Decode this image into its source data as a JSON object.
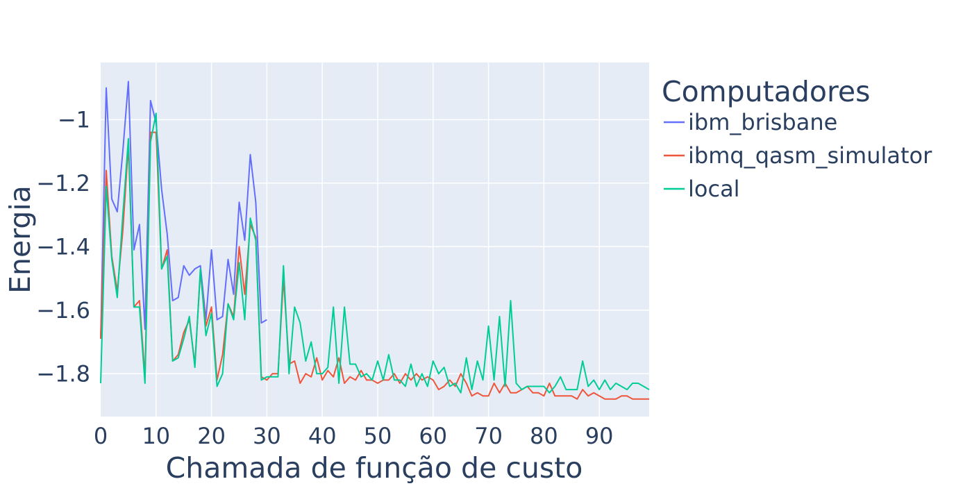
{
  "chart_data": {
    "type": "line",
    "title": "",
    "xlabel": "Chamada de função de custo",
    "ylabel": "Energia",
    "xlim": [
      0,
      99
    ],
    "ylim": [
      -1.935,
      -0.82
    ],
    "xticks": [
      0,
      10,
      20,
      30,
      40,
      50,
      60,
      70,
      80,
      90
    ],
    "yticks": [
      -1.8,
      -1.6,
      -1.4,
      -1.2,
      -1
    ],
    "ytick_labels": [
      "−1.8",
      "−1.6",
      "−1.4",
      "−1.2",
      "−1"
    ],
    "grid": true,
    "plot_background": "#e5ecf6",
    "legend": {
      "title": "Computadores",
      "placement": "right"
    },
    "series": [
      {
        "name": "ibm_brisbane",
        "color": "#636efa",
        "x": [
          0,
          1,
          2,
          3,
          4,
          5,
          6,
          7,
          8,
          9,
          10,
          11,
          12,
          13,
          14,
          15,
          16,
          17,
          18,
          19,
          20,
          21,
          22,
          23,
          24,
          25,
          26,
          27,
          28,
          29,
          30
        ],
        "y": [
          -1.69,
          -0.9,
          -1.25,
          -1.29,
          -1.1,
          -0.88,
          -1.41,
          -1.33,
          -1.66,
          -0.94,
          -1.01,
          -1.22,
          -1.36,
          -1.57,
          -1.56,
          -1.46,
          -1.49,
          -1.47,
          -1.46,
          -1.63,
          -1.41,
          -1.63,
          -1.62,
          -1.44,
          -1.55,
          -1.26,
          -1.38,
          -1.11,
          -1.26,
          -1.64,
          -1.63
        ]
      },
      {
        "name": "ibmq_qasm_simulator",
        "color": "#ef553b",
        "x": [
          0,
          1,
          2,
          3,
          4,
          5,
          6,
          7,
          8,
          9,
          10,
          11,
          12,
          13,
          14,
          15,
          16,
          17,
          18,
          19,
          20,
          21,
          22,
          23,
          24,
          25,
          26,
          27,
          28,
          29,
          30,
          31,
          32,
          33,
          34,
          35,
          36,
          37,
          38,
          39,
          40,
          41,
          42,
          43,
          44,
          45,
          46,
          47,
          48,
          49,
          50,
          51,
          52,
          53,
          54,
          55,
          56,
          57,
          58,
          59,
          60,
          61,
          62,
          63,
          64,
          65,
          66,
          67,
          68,
          69,
          70,
          71,
          72,
          73,
          74,
          75,
          76,
          77,
          78,
          79,
          80,
          81,
          82,
          83,
          84,
          85,
          86,
          87,
          88,
          89,
          90,
          91,
          92,
          93,
          94,
          95,
          96,
          97,
          98,
          99
        ],
        "y": [
          -1.69,
          -1.16,
          -1.43,
          -1.54,
          -1.35,
          -1.08,
          -1.59,
          -1.57,
          -1.81,
          -1.04,
          -1.04,
          -1.47,
          -1.41,
          -1.76,
          -1.74,
          -1.67,
          -1.63,
          -1.77,
          -1.48,
          -1.65,
          -1.59,
          -1.82,
          -1.74,
          -1.58,
          -1.62,
          -1.4,
          -1.55,
          -1.33,
          -1.37,
          -1.81,
          -1.82,
          -1.8,
          -1.8,
          -1.5,
          -1.77,
          -1.76,
          -1.83,
          -1.8,
          -1.81,
          -1.75,
          -1.82,
          -1.79,
          -1.81,
          -1.75,
          -1.83,
          -1.81,
          -1.82,
          -1.79,
          -1.82,
          -1.82,
          -1.83,
          -1.82,
          -1.82,
          -1.8,
          -1.83,
          -1.8,
          -1.82,
          -1.8,
          -1.82,
          -1.81,
          -1.82,
          -1.85,
          -1.84,
          -1.82,
          -1.84,
          -1.8,
          -1.83,
          -1.87,
          -1.86,
          -1.87,
          -1.87,
          -1.83,
          -1.86,
          -1.83,
          -1.86,
          -1.86,
          -1.85,
          -1.84,
          -1.86,
          -1.86,
          -1.87,
          -1.83,
          -1.87,
          -1.87,
          -1.87,
          -1.87,
          -1.88,
          -1.85,
          -1.87,
          -1.86,
          -1.87,
          -1.88,
          -1.88,
          -1.88,
          -1.87,
          -1.87,
          -1.88,
          -1.88,
          -1.88,
          -1.88
        ]
      },
      {
        "name": "local",
        "color": "#00cc96",
        "x": [
          0,
          1,
          2,
          3,
          4,
          5,
          6,
          7,
          8,
          9,
          10,
          11,
          12,
          13,
          14,
          15,
          16,
          17,
          18,
          19,
          20,
          21,
          22,
          23,
          24,
          25,
          26,
          27,
          28,
          29,
          30,
          31,
          32,
          33,
          34,
          35,
          36,
          37,
          38,
          39,
          40,
          41,
          42,
          43,
          44,
          45,
          46,
          47,
          48,
          49,
          50,
          51,
          52,
          53,
          54,
          55,
          56,
          57,
          58,
          59,
          60,
          61,
          62,
          63,
          64,
          65,
          66,
          67,
          68,
          69,
          70,
          71,
          72,
          73,
          74,
          75,
          76,
          77,
          78,
          79,
          80,
          81,
          82,
          83,
          84,
          85,
          86,
          87,
          88,
          89,
          90,
          91,
          92,
          93,
          94,
          95,
          96,
          97,
          98,
          99
        ],
        "y": [
          -1.83,
          -1.21,
          -1.44,
          -1.56,
          -1.3,
          -1.06,
          -1.59,
          -1.59,
          -1.83,
          -1.07,
          -0.98,
          -1.47,
          -1.43,
          -1.76,
          -1.75,
          -1.69,
          -1.62,
          -1.78,
          -1.47,
          -1.68,
          -1.61,
          -1.84,
          -1.8,
          -1.58,
          -1.63,
          -1.45,
          -1.63,
          -1.31,
          -1.38,
          -1.82,
          -1.81,
          -1.81,
          -1.81,
          -1.46,
          -1.8,
          -1.59,
          -1.64,
          -1.76,
          -1.7,
          -1.8,
          -1.8,
          -1.78,
          -1.59,
          -1.83,
          -1.59,
          -1.77,
          -1.77,
          -1.81,
          -1.8,
          -1.82,
          -1.76,
          -1.82,
          -1.74,
          -1.82,
          -1.82,
          -1.84,
          -1.77,
          -1.84,
          -1.8,
          -1.84,
          -1.76,
          -1.8,
          -1.78,
          -1.84,
          -1.83,
          -1.86,
          -1.75,
          -1.85,
          -1.76,
          -1.82,
          -1.65,
          -1.82,
          -1.62,
          -1.84,
          -1.57,
          -1.83,
          -1.85,
          -1.84,
          -1.84,
          -1.84,
          -1.84,
          -1.86,
          -1.84,
          -1.81,
          -1.85,
          -1.85,
          -1.85,
          -1.76,
          -1.84,
          -1.82,
          -1.85,
          -1.82,
          -1.85,
          -1.83,
          -1.84,
          -1.85,
          -1.83,
          -1.83,
          -1.84,
          -1.85
        ]
      }
    ]
  }
}
